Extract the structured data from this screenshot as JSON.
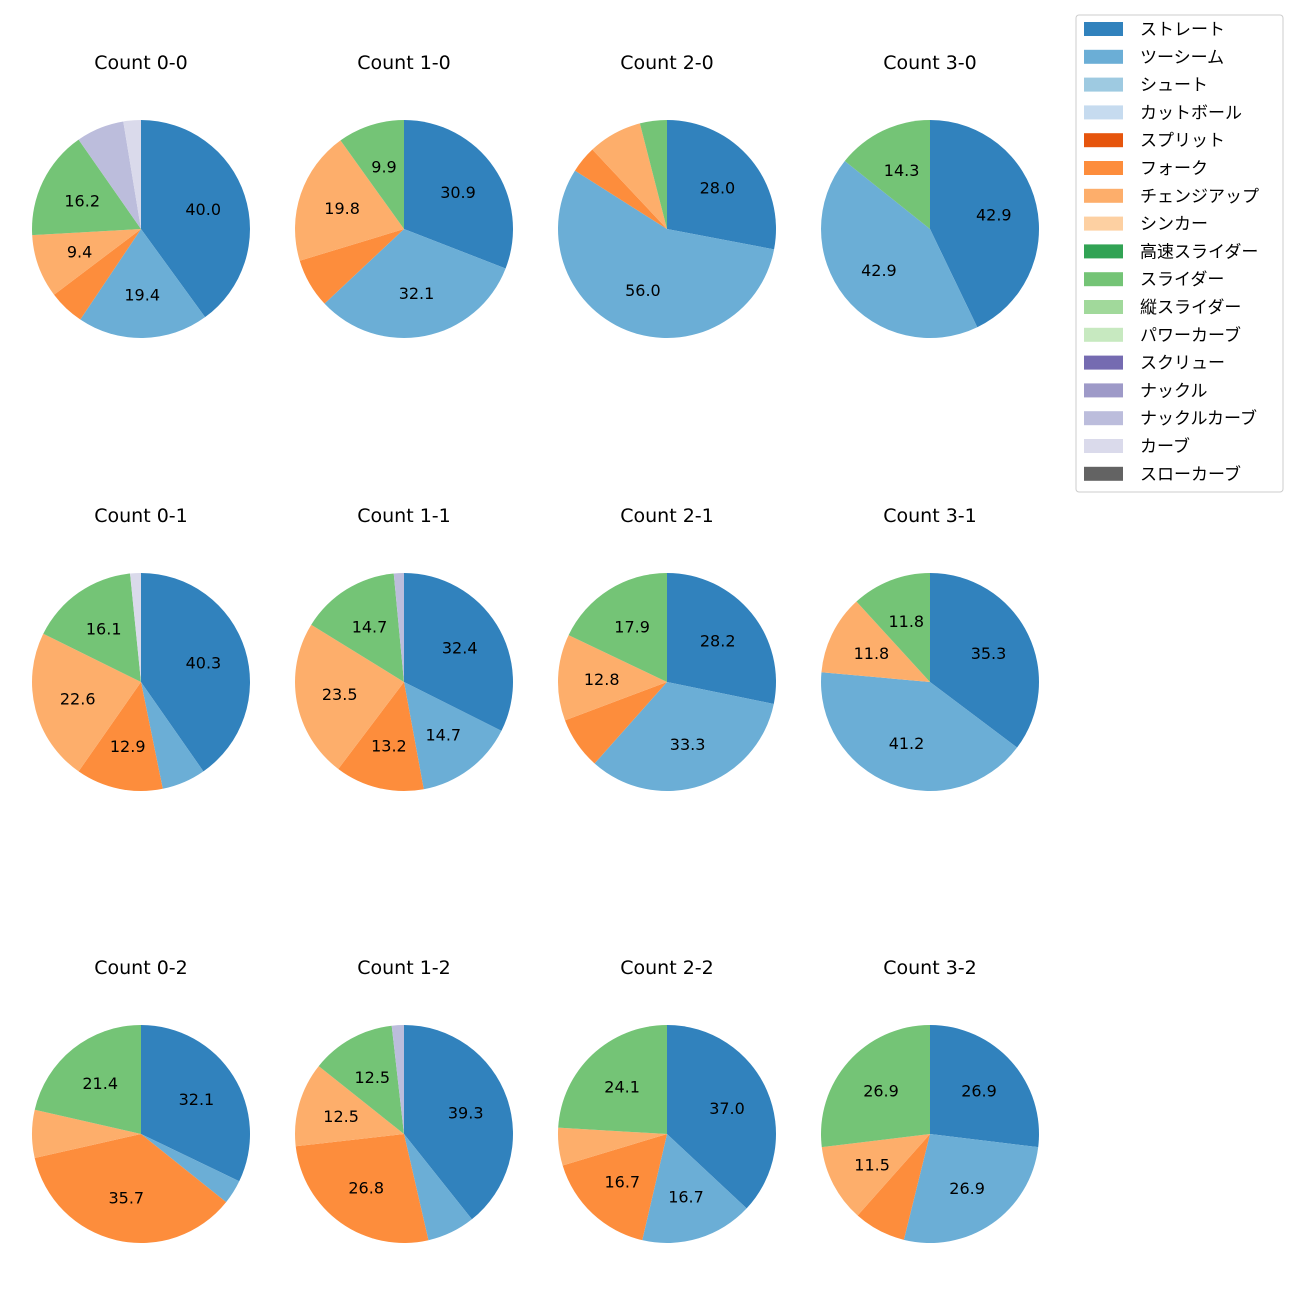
{
  "legend": {
    "position": "top-right",
    "items": [
      {
        "name": "ストレート",
        "color": "#3182bd"
      },
      {
        "name": "ツーシーム",
        "color": "#6baed6"
      },
      {
        "name": "シュート",
        "color": "#9ecae1"
      },
      {
        "name": "カットボール",
        "color": "#c6dbef"
      },
      {
        "name": "スプリット",
        "color": "#e6550d"
      },
      {
        "name": "フォーク",
        "color": "#fd8d3c"
      },
      {
        "name": "チェンジアップ",
        "color": "#fdae6b"
      },
      {
        "name": "シンカー",
        "color": "#fdd0a2"
      },
      {
        "name": "高速スライダー",
        "color": "#31a354"
      },
      {
        "name": "スライダー",
        "color": "#74c476"
      },
      {
        "name": "縦スライダー",
        "color": "#a1d99b"
      },
      {
        "name": "パワーカーブ",
        "color": "#c7e9c0"
      },
      {
        "name": "スクリュー",
        "color": "#756bb1"
      },
      {
        "name": "ナックル",
        "color": "#9e9ac8"
      },
      {
        "name": "ナックルカーブ",
        "color": "#bcbddc"
      },
      {
        "name": "カーブ",
        "color": "#dadaeb"
      },
      {
        "name": "スローカーブ",
        "color": "#636363"
      }
    ]
  },
  "chart_data": [
    {
      "type": "pie",
      "title": "Count 0-0",
      "slices": [
        {
          "category": "ストレート",
          "value": 40.0,
          "label": "40.0"
        },
        {
          "category": "ツーシーム",
          "value": 19.4,
          "label": "19.4"
        },
        {
          "category": "フォーク",
          "value": 5.3,
          "label": ""
        },
        {
          "category": "チェンジアップ",
          "value": 9.4,
          "label": "9.4"
        },
        {
          "category": "スライダー",
          "value": 16.2,
          "label": "16.2"
        },
        {
          "category": "ナックルカーブ",
          "value": 7.1,
          "label": ""
        },
        {
          "category": "カーブ",
          "value": 2.6,
          "label": ""
        }
      ]
    },
    {
      "type": "pie",
      "title": "Count 1-0",
      "slices": [
        {
          "category": "ストレート",
          "value": 30.9,
          "label": "30.9"
        },
        {
          "category": "ツーシーム",
          "value": 32.1,
          "label": "32.1"
        },
        {
          "category": "フォーク",
          "value": 7.3,
          "label": ""
        },
        {
          "category": "チェンジアップ",
          "value": 19.8,
          "label": "19.8"
        },
        {
          "category": "スライダー",
          "value": 9.9,
          "label": "9.9"
        }
      ]
    },
    {
      "type": "pie",
      "title": "Count 2-0",
      "slices": [
        {
          "category": "ストレート",
          "value": 28.0,
          "label": "28.0"
        },
        {
          "category": "ツーシーム",
          "value": 56.0,
          "label": "56.0"
        },
        {
          "category": "フォーク",
          "value": 4.0,
          "label": ""
        },
        {
          "category": "チェンジアップ",
          "value": 8.0,
          "label": ""
        },
        {
          "category": "スライダー",
          "value": 4.0,
          "label": ""
        }
      ]
    },
    {
      "type": "pie",
      "title": "Count 3-0",
      "slices": [
        {
          "category": "ストレート",
          "value": 42.9,
          "label": "42.9"
        },
        {
          "category": "ツーシーム",
          "value": 42.9,
          "label": "42.9"
        },
        {
          "category": "スライダー",
          "value": 14.3,
          "label": "14.3"
        }
      ]
    },
    {
      "type": "pie",
      "title": "Count 0-1",
      "slices": [
        {
          "category": "ストレート",
          "value": 40.3,
          "label": "40.3"
        },
        {
          "category": "ツーシーム",
          "value": 6.5,
          "label": ""
        },
        {
          "category": "フォーク",
          "value": 12.9,
          "label": "12.9"
        },
        {
          "category": "チェンジアップ",
          "value": 22.6,
          "label": "22.6"
        },
        {
          "category": "スライダー",
          "value": 16.1,
          "label": "16.1"
        },
        {
          "category": "カーブ",
          "value": 1.6,
          "label": ""
        }
      ]
    },
    {
      "type": "pie",
      "title": "Count 1-1",
      "slices": [
        {
          "category": "ストレート",
          "value": 32.4,
          "label": "32.4"
        },
        {
          "category": "ツーシーム",
          "value": 14.7,
          "label": "14.7"
        },
        {
          "category": "フォーク",
          "value": 13.2,
          "label": "13.2"
        },
        {
          "category": "チェンジアップ",
          "value": 23.5,
          "label": "23.5"
        },
        {
          "category": "スライダー",
          "value": 14.7,
          "label": "14.7"
        },
        {
          "category": "ナックルカーブ",
          "value": 1.5,
          "label": ""
        }
      ]
    },
    {
      "type": "pie",
      "title": "Count 2-1",
      "slices": [
        {
          "category": "ストレート",
          "value": 28.2,
          "label": "28.2"
        },
        {
          "category": "ツーシーム",
          "value": 33.3,
          "label": "33.3"
        },
        {
          "category": "フォーク",
          "value": 7.7,
          "label": ""
        },
        {
          "category": "チェンジアップ",
          "value": 12.8,
          "label": "12.8"
        },
        {
          "category": "スライダー",
          "value": 17.9,
          "label": "17.9"
        }
      ]
    },
    {
      "type": "pie",
      "title": "Count 3-1",
      "slices": [
        {
          "category": "ストレート",
          "value": 35.3,
          "label": "35.3"
        },
        {
          "category": "ツーシーム",
          "value": 41.2,
          "label": "41.2"
        },
        {
          "category": "チェンジアップ",
          "value": 11.8,
          "label": "11.8"
        },
        {
          "category": "スライダー",
          "value": 11.8,
          "label": "11.8"
        }
      ]
    },
    {
      "type": "pie",
      "title": "Count 0-2",
      "slices": [
        {
          "category": "ストレート",
          "value": 32.1,
          "label": "32.1"
        },
        {
          "category": "ツーシーム",
          "value": 3.6,
          "label": ""
        },
        {
          "category": "フォーク",
          "value": 35.7,
          "label": "35.7"
        },
        {
          "category": "チェンジアップ",
          "value": 7.1,
          "label": ""
        },
        {
          "category": "スライダー",
          "value": 21.4,
          "label": "21.4"
        }
      ]
    },
    {
      "type": "pie",
      "title": "Count 1-2",
      "slices": [
        {
          "category": "ストレート",
          "value": 39.3,
          "label": "39.3"
        },
        {
          "category": "ツーシーム",
          "value": 7.1,
          "label": ""
        },
        {
          "category": "フォーク",
          "value": 26.8,
          "label": "26.8"
        },
        {
          "category": "チェンジアップ",
          "value": 12.5,
          "label": "12.5"
        },
        {
          "category": "スライダー",
          "value": 12.5,
          "label": "12.5"
        },
        {
          "category": "ナックルカーブ",
          "value": 1.8,
          "label": ""
        }
      ]
    },
    {
      "type": "pie",
      "title": "Count 2-2",
      "slices": [
        {
          "category": "ストレート",
          "value": 37.0,
          "label": "37.0"
        },
        {
          "category": "ツーシーム",
          "value": 16.7,
          "label": "16.7"
        },
        {
          "category": "フォーク",
          "value": 16.7,
          "label": "16.7"
        },
        {
          "category": "チェンジアップ",
          "value": 5.6,
          "label": ""
        },
        {
          "category": "スライダー",
          "value": 24.1,
          "label": "24.1"
        }
      ]
    },
    {
      "type": "pie",
      "title": "Count 3-2",
      "slices": [
        {
          "category": "ストレート",
          "value": 26.9,
          "label": "26.9"
        },
        {
          "category": "ツーシーム",
          "value": 26.9,
          "label": "26.9"
        },
        {
          "category": "フォーク",
          "value": 7.7,
          "label": ""
        },
        {
          "category": "チェンジアップ",
          "value": 11.5,
          "label": "11.5"
        },
        {
          "category": "スライダー",
          "value": 26.9,
          "label": "26.9"
        }
      ]
    }
  ]
}
